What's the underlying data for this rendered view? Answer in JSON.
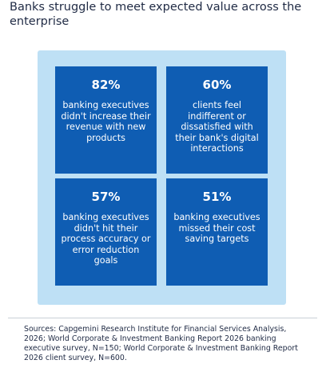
{
  "title": "Banks struggle to meet expected value across the enterprise",
  "chart_data": {
    "type": "table",
    "title": "Banks struggle to meet expected value across the enterprise",
    "cells": [
      {
        "value": "82%",
        "text": "banking executives didn't increase their revenue with new products"
      },
      {
        "value": "60%",
        "text": "clients feel indifferent or dissatisfied with their bank's digital interactions"
      },
      {
        "value": "57%",
        "text": "banking executives didn't hit their process accuracy or error reduction goals"
      },
      {
        "value": "51%",
        "text": "banking executives missed their cost saving targets"
      }
    ]
  },
  "colors": {
    "panel_background": "#bee0f5",
    "tile_background": "#0f5db3",
    "tile_text": "#ffffff",
    "title_text": "#1f2a44"
  },
  "source": "Sources: Capgemini Research Institute for Financial Services Analysis, 2026; World Corporate & Investment Banking Report 2026 banking executive survey, N=150; World Corporate & Investment Banking Report 2026 client survey, N=600."
}
